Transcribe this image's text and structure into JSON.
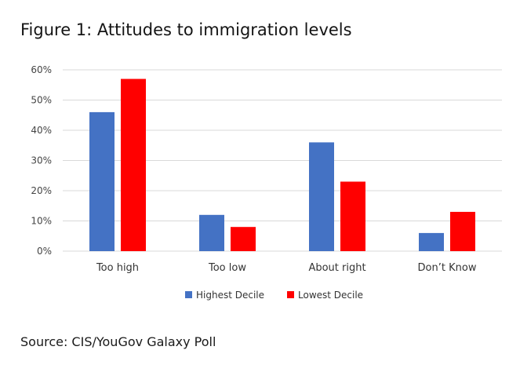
{
  "figure": {
    "title": "Figure 1: Attitudes to immigration levels",
    "source": "Source: CIS/YouGov Galaxy Poll"
  },
  "chart_data": {
    "type": "bar",
    "title": "Figure 1: Attitudes to immigration levels",
    "xlabel": "",
    "ylabel": "",
    "categories": [
      "Too high",
      "Too low",
      "About right",
      "Don’t Know"
    ],
    "series": [
      {
        "name": "Highest Decile",
        "color": "#4472C4",
        "values": [
          46,
          12,
          36,
          6
        ]
      },
      {
        "name": "Lowest Decile",
        "color": "#FF0000",
        "values": [
          57,
          8,
          23,
          13
        ]
      }
    ],
    "ylim": [
      0,
      60
    ],
    "yticks": [
      0,
      10,
      20,
      30,
      40,
      50,
      60
    ],
    "ytick_labels": [
      "0%",
      "10%",
      "20%",
      "30%",
      "40%",
      "50%",
      "60%"
    ],
    "grid": true,
    "legend_position": "bottom-center"
  }
}
